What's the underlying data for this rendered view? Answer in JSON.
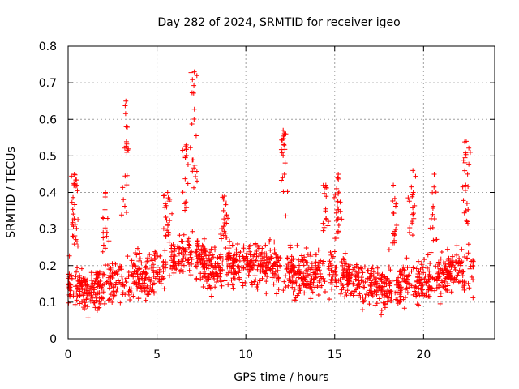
{
  "chart_data": {
    "type": "scatter",
    "title": "Day 282 of 2024, SRMTID for receiver igeo",
    "xlabel": "GPS time / hours",
    "ylabel": "SRMTID / TECUs",
    "xlim": [
      0,
      24
    ],
    "ylim": [
      0,
      0.8
    ],
    "x_ticks": [
      0,
      5,
      10,
      15,
      20
    ],
    "x_tick_labels": [
      "0",
      "5",
      "10",
      "15",
      "20"
    ],
    "y_ticks": [
      0,
      0.1,
      0.2,
      0.3,
      0.4,
      0.5,
      0.6,
      0.7,
      0.8
    ],
    "y_tick_labels": [
      "0",
      "0.1",
      "0.2",
      "0.3",
      "0.4",
      "0.5",
      "0.6",
      "0.7",
      "0.8"
    ],
    "grid": true,
    "marker": "+",
    "color": "#ff0000",
    "series": [
      {
        "name": "SRMTID",
        "x_range": [
          0,
          22.8
        ],
        "baseline_profile": [
          [
            0,
            0.16
          ],
          [
            1,
            0.13
          ],
          [
            2,
            0.14
          ],
          [
            3,
            0.16
          ],
          [
            4,
            0.17
          ],
          [
            5,
            0.18
          ],
          [
            6,
            0.22
          ],
          [
            7,
            0.24
          ],
          [
            8,
            0.19
          ],
          [
            9,
            0.2
          ],
          [
            10,
            0.21
          ],
          [
            11,
            0.2
          ],
          [
            12,
            0.19
          ],
          [
            13,
            0.17
          ],
          [
            14,
            0.18
          ],
          [
            15,
            0.17
          ],
          [
            16,
            0.16
          ],
          [
            17,
            0.15
          ],
          [
            18,
            0.14
          ],
          [
            19,
            0.15
          ],
          [
            20,
            0.16
          ],
          [
            21,
            0.17
          ],
          [
            22,
            0.19
          ],
          [
            22.8,
            0.18
          ]
        ],
        "peaks": [
          {
            "x": 0.35,
            "y": 0.45
          },
          {
            "x": 2.1,
            "y": 0.4
          },
          {
            "x": 3.25,
            "y": 0.65
          },
          {
            "x": 5.6,
            "y": 0.4
          },
          {
            "x": 6.65,
            "y": 0.53
          },
          {
            "x": 7.1,
            "y": 0.73
          },
          {
            "x": 8.8,
            "y": 0.39
          },
          {
            "x": 12.1,
            "y": 0.57
          },
          {
            "x": 14.5,
            "y": 0.42
          },
          {
            "x": 15.2,
            "y": 0.45
          },
          {
            "x": 18.3,
            "y": 0.42
          },
          {
            "x": 19.4,
            "y": 0.46
          },
          {
            "x": 20.6,
            "y": 0.45
          },
          {
            "x": 22.4,
            "y": 0.54
          }
        ],
        "n_points": 1800
      }
    ]
  }
}
